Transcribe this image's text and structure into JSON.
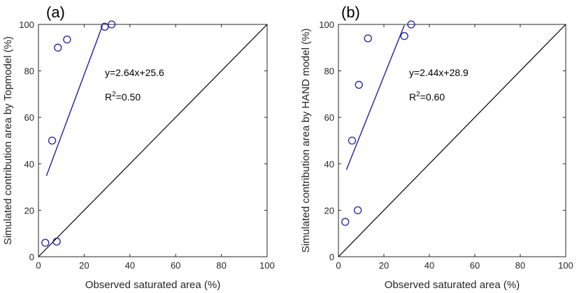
{
  "colors": {
    "marker": "#1f1fa8",
    "fit_line": "#1f1fa8",
    "one_to_one_line": "#000000",
    "axes": "#262626",
    "background": "#ffffff"
  },
  "chart_data": [
    {
      "type": "scatter",
      "panel_label": "(a)",
      "title": "",
      "xlabel": "Observed saturated area (%)",
      "ylabel": "Simulated contribution area by Topmodel (%)",
      "xlim": [
        0,
        100
      ],
      "ylim": [
        0,
        100
      ],
      "xticks": [
        0,
        20,
        40,
        60,
        80,
        100
      ],
      "yticks": [
        0,
        20,
        40,
        60,
        80,
        100
      ],
      "grid": false,
      "legend": "none",
      "points": {
        "x": [
          3,
          8,
          8.5,
          12.5,
          6,
          29,
          32
        ],
        "y": [
          6,
          6.5,
          90,
          93.5,
          50,
          99,
          100
        ]
      },
      "fit": {
        "slope": 2.64,
        "intercept": 25.6,
        "x_range": [
          3.5,
          28
        ]
      },
      "reference_line": "1:1",
      "annotation": {
        "equation": "y=2.64x+25.6",
        "r2_prefix": "R",
        "r2_sup": "2",
        "r2_value": "=0.50"
      }
    },
    {
      "type": "scatter",
      "panel_label": "(b)",
      "title": "",
      "xlabel": "Observed saturated area (%)",
      "ylabel": "Simulated contribution area by HAND model (%)",
      "xlim": [
        0,
        100
      ],
      "ylim": [
        0,
        100
      ],
      "xticks": [
        0,
        20,
        40,
        60,
        80,
        100
      ],
      "yticks": [
        0,
        20,
        40,
        60,
        80,
        100
      ],
      "grid": false,
      "legend": "none",
      "points": {
        "x": [
          3,
          8.5,
          6,
          9,
          13,
          29,
          32
        ],
        "y": [
          15,
          20,
          50,
          74,
          94,
          95,
          100
        ]
      },
      "fit": {
        "slope": 2.44,
        "intercept": 28.9,
        "x_range": [
          3.5,
          29
        ]
      },
      "reference_line": "1:1",
      "annotation": {
        "equation": "y=2.44x+28.9",
        "r2_prefix": "R",
        "r2_sup": "2",
        "r2_value": "=0.60"
      }
    }
  ]
}
